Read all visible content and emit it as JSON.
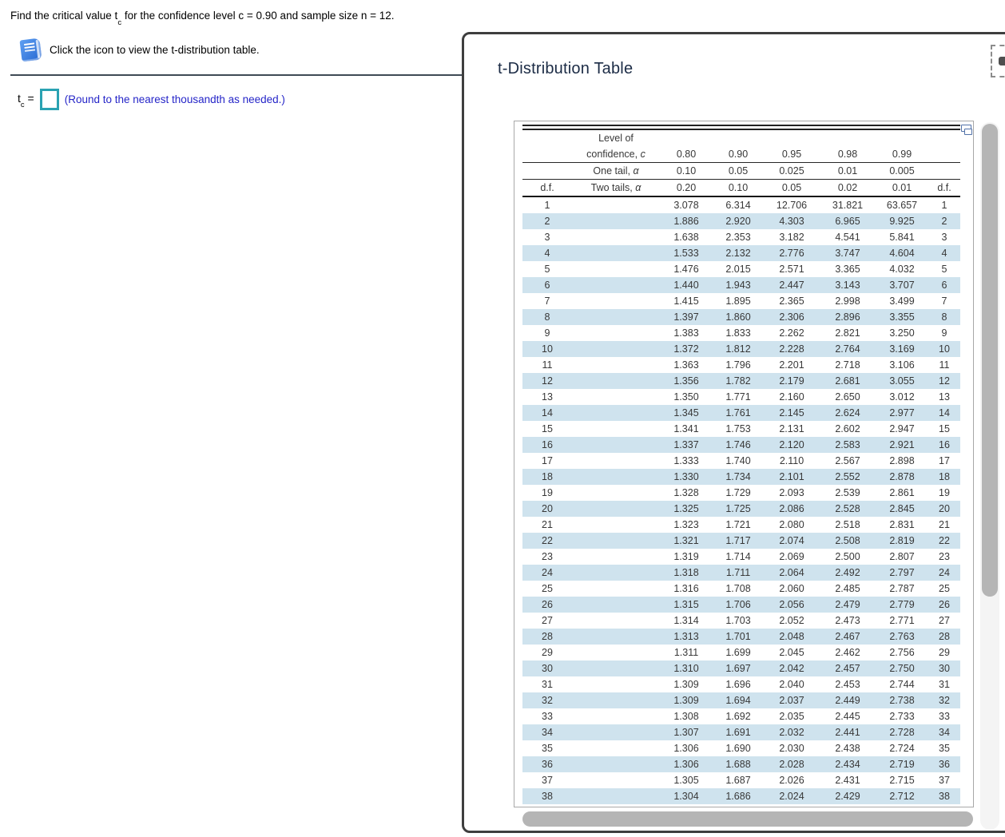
{
  "problem": {
    "statement_pre": "Find the critical value t",
    "statement_sub": "c",
    "statement_post": " for the confidence level c = 0.90 and sample size n = 12.",
    "hint": "Click the icon to view the t-distribution table.",
    "answer_pre": "t",
    "answer_sub": "c",
    "answer_eq": "=",
    "input_value": "",
    "round_note": "(Round to the nearest thousandth as needed.)"
  },
  "popup": {
    "title": "t-Distribution Table",
    "icons": {
      "minimize": "dock-dash-icon",
      "popout": "popout-windows-icon",
      "book": "blue-book-icon"
    }
  },
  "table": {
    "header": {
      "level_of": "Level of",
      "confidence_label": "confidence,",
      "confidence_var": "c",
      "one_tail_label": "One tail,",
      "one_tail_var": "α",
      "two_tails_label": "Two tails,",
      "two_tails_var": "α",
      "df_left": "d.f.",
      "df_right": "d.f.",
      "confidence_values": [
        "0.80",
        "0.90",
        "0.95",
        "0.98",
        "0.99"
      ],
      "one_tail_values": [
        "0.10",
        "0.05",
        "0.025",
        "0.01",
        "0.005"
      ],
      "two_tails_values": [
        "0.20",
        "0.10",
        "0.05",
        "0.02",
        "0.01"
      ]
    },
    "rows": [
      [
        1,
        "3.078",
        "6.314",
        "12.706",
        "31.821",
        "63.657"
      ],
      [
        2,
        "1.886",
        "2.920",
        "4.303",
        "6.965",
        "9.925"
      ],
      [
        3,
        "1.638",
        "2.353",
        "3.182",
        "4.541",
        "5.841"
      ],
      [
        4,
        "1.533",
        "2.132",
        "2.776",
        "3.747",
        "4.604"
      ],
      [
        5,
        "1.476",
        "2.015",
        "2.571",
        "3.365",
        "4.032"
      ],
      [
        6,
        "1.440",
        "1.943",
        "2.447",
        "3.143",
        "3.707"
      ],
      [
        7,
        "1.415",
        "1.895",
        "2.365",
        "2.998",
        "3.499"
      ],
      [
        8,
        "1.397",
        "1.860",
        "2.306",
        "2.896",
        "3.355"
      ],
      [
        9,
        "1.383",
        "1.833",
        "2.262",
        "2.821",
        "3.250"
      ],
      [
        10,
        "1.372",
        "1.812",
        "2.228",
        "2.764",
        "3.169"
      ],
      [
        11,
        "1.363",
        "1.796",
        "2.201",
        "2.718",
        "3.106"
      ],
      [
        12,
        "1.356",
        "1.782",
        "2.179",
        "2.681",
        "3.055"
      ],
      [
        13,
        "1.350",
        "1.771",
        "2.160",
        "2.650",
        "3.012"
      ],
      [
        14,
        "1.345",
        "1.761",
        "2.145",
        "2.624",
        "2.977"
      ],
      [
        15,
        "1.341",
        "1.753",
        "2.131",
        "2.602",
        "2.947"
      ],
      [
        16,
        "1.337",
        "1.746",
        "2.120",
        "2.583",
        "2.921"
      ],
      [
        17,
        "1.333",
        "1.740",
        "2.110",
        "2.567",
        "2.898"
      ],
      [
        18,
        "1.330",
        "1.734",
        "2.101",
        "2.552",
        "2.878"
      ],
      [
        19,
        "1.328",
        "1.729",
        "2.093",
        "2.539",
        "2.861"
      ],
      [
        20,
        "1.325",
        "1.725",
        "2.086",
        "2.528",
        "2.845"
      ],
      [
        21,
        "1.323",
        "1.721",
        "2.080",
        "2.518",
        "2.831"
      ],
      [
        22,
        "1.321",
        "1.717",
        "2.074",
        "2.508",
        "2.819"
      ],
      [
        23,
        "1.319",
        "1.714",
        "2.069",
        "2.500",
        "2.807"
      ],
      [
        24,
        "1.318",
        "1.711",
        "2.064",
        "2.492",
        "2.797"
      ],
      [
        25,
        "1.316",
        "1.708",
        "2.060",
        "2.485",
        "2.787"
      ],
      [
        26,
        "1.315",
        "1.706",
        "2.056",
        "2.479",
        "2.779"
      ],
      [
        27,
        "1.314",
        "1.703",
        "2.052",
        "2.473",
        "2.771"
      ],
      [
        28,
        "1.313",
        "1.701",
        "2.048",
        "2.467",
        "2.763"
      ],
      [
        29,
        "1.311",
        "1.699",
        "2.045",
        "2.462",
        "2.756"
      ],
      [
        30,
        "1.310",
        "1.697",
        "2.042",
        "2.457",
        "2.750"
      ],
      [
        31,
        "1.309",
        "1.696",
        "2.040",
        "2.453",
        "2.744"
      ],
      [
        32,
        "1.309",
        "1.694",
        "2.037",
        "2.449",
        "2.738"
      ],
      [
        33,
        "1.308",
        "1.692",
        "2.035",
        "2.445",
        "2.733"
      ],
      [
        34,
        "1.307",
        "1.691",
        "2.032",
        "2.441",
        "2.728"
      ],
      [
        35,
        "1.306",
        "1.690",
        "2.030",
        "2.438",
        "2.724"
      ],
      [
        36,
        "1.306",
        "1.688",
        "2.028",
        "2.434",
        "2.719"
      ],
      [
        37,
        "1.305",
        "1.687",
        "2.026",
        "2.431",
        "2.715"
      ],
      [
        38,
        "1.304",
        "1.686",
        "2.024",
        "2.429",
        "2.712"
      ]
    ]
  },
  "colors": {
    "row_alt_blue": "#cfe3ee",
    "input_border_teal": "#2aa2b2",
    "note_blue": "#2525c8",
    "title_navy": "#1b2b45",
    "scroll_thumb_gray": "#b5b5b5"
  }
}
